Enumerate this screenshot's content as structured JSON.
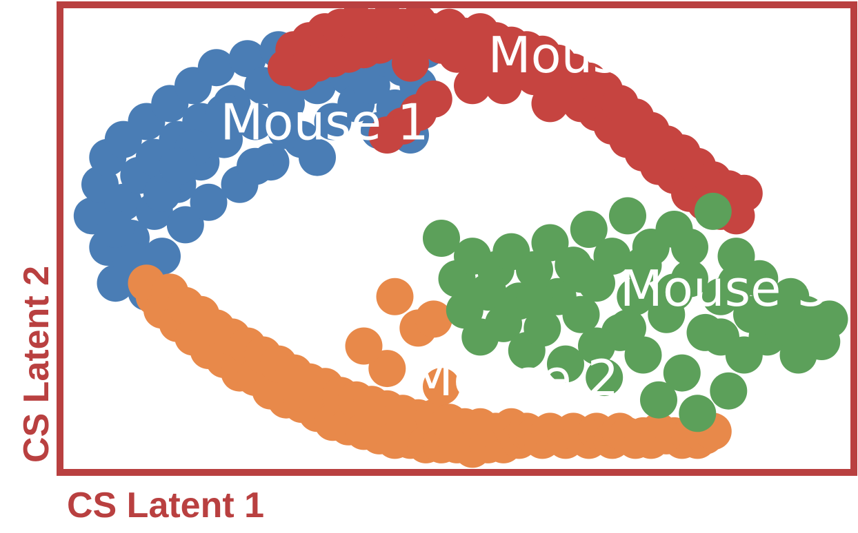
{
  "chart_data": {
    "type": "scatter",
    "title": "",
    "xlabel": "CS Latent 1",
    "ylabel": "CS Latent 2",
    "xlim": [
      0,
      100
    ],
    "ylim": [
      0,
      100
    ],
    "grid": false,
    "frame_color": "#b94040",
    "axis_label_color": "#b94040",
    "series": [
      {
        "name": "Mouse 1",
        "color": "#4a7db5",
        "label_at": [
          19.5,
          72
        ],
        "points": [
          [
            3,
            55
          ],
          [
            4,
            62
          ],
          [
            5,
            48
          ],
          [
            5,
            68
          ],
          [
            6,
            40
          ],
          [
            7,
            58
          ],
          [
            7,
            72
          ],
          [
            8,
            50
          ],
          [
            9,
            64
          ],
          [
            9,
            43
          ],
          [
            10,
            76
          ],
          [
            11,
            56
          ],
          [
            11,
            68
          ],
          [
            12,
            46
          ],
          [
            13,
            80
          ],
          [
            14,
            62
          ],
          [
            14,
            72
          ],
          [
            15,
            53
          ],
          [
            16,
            84
          ],
          [
            17,
            67
          ],
          [
            17,
            76
          ],
          [
            18,
            58
          ],
          [
            19,
            88
          ],
          [
            20,
            72
          ],
          [
            21,
            80
          ],
          [
            22,
            62
          ],
          [
            23,
            90
          ],
          [
            24,
            76
          ],
          [
            25,
            84
          ],
          [
            26,
            67
          ],
          [
            27,
            92
          ],
          [
            28,
            80
          ],
          [
            29,
            87
          ],
          [
            30,
            72
          ],
          [
            31,
            93
          ],
          [
            32,
            84
          ],
          [
            33,
            89
          ],
          [
            34,
            76
          ],
          [
            35,
            94
          ],
          [
            36,
            86
          ],
          [
            37,
            80
          ],
          [
            38,
            92
          ],
          [
            39,
            84
          ],
          [
            40,
            74
          ],
          [
            41,
            90
          ],
          [
            42,
            79
          ],
          [
            43,
            88
          ],
          [
            44,
            73
          ],
          [
            45,
            84
          ],
          [
            46,
            92
          ],
          [
            8,
            45
          ],
          [
            12,
            60
          ],
          [
            16,
            70
          ],
          [
            20,
            78
          ],
          [
            24,
            66
          ],
          [
            28,
            74
          ],
          [
            32,
            68
          ],
          [
            6,
            52
          ],
          [
            10,
            38
          ],
          [
            14,
            66
          ]
        ]
      },
      {
        "name": "Mouse 2",
        "color": "#e8894a",
        "label_at": [
          44,
          15
        ],
        "points": [
          [
            10,
            40
          ],
          [
            11,
            37
          ],
          [
            12,
            34
          ],
          [
            13,
            38
          ],
          [
            14,
            31
          ],
          [
            15,
            35
          ],
          [
            16,
            28
          ],
          [
            17,
            33
          ],
          [
            18,
            25
          ],
          [
            19,
            30
          ],
          [
            20,
            23
          ],
          [
            21,
            28
          ],
          [
            22,
            20
          ],
          [
            23,
            26
          ],
          [
            24,
            19
          ],
          [
            25,
            24
          ],
          [
            26,
            16
          ],
          [
            27,
            22
          ],
          [
            28,
            14
          ],
          [
            29,
            20
          ],
          [
            30,
            13
          ],
          [
            31,
            18
          ],
          [
            32,
            11
          ],
          [
            33,
            17
          ],
          [
            34,
            9
          ],
          [
            35,
            15
          ],
          [
            36,
            8
          ],
          [
            37,
            14
          ],
          [
            38,
            7
          ],
          [
            39,
            13
          ],
          [
            40,
            6
          ],
          [
            41,
            12
          ],
          [
            42,
            5
          ],
          [
            43,
            11
          ],
          [
            44,
            5
          ],
          [
            45,
            10
          ],
          [
            46,
            4
          ],
          [
            47,
            10
          ],
          [
            48,
            4
          ],
          [
            49,
            9
          ],
          [
            50,
            4
          ],
          [
            51,
            8
          ],
          [
            52,
            3
          ],
          [
            53,
            8
          ],
          [
            54,
            4
          ],
          [
            55,
            7
          ],
          [
            56,
            4
          ],
          [
            57,
            8
          ],
          [
            58,
            5
          ],
          [
            59,
            7
          ],
          [
            60,
            6
          ],
          [
            61,
            5
          ],
          [
            62,
            7
          ],
          [
            63,
            6
          ],
          [
            64,
            5
          ],
          [
            65,
            7
          ],
          [
            66,
            6
          ],
          [
            67,
            5
          ],
          [
            68,
            7
          ],
          [
            69,
            6
          ],
          [
            70,
            5
          ],
          [
            71,
            7
          ],
          [
            72,
            6
          ],
          [
            73,
            5
          ],
          [
            74,
            6
          ],
          [
            75,
            5
          ],
          [
            76,
            7
          ],
          [
            77,
            6
          ],
          [
            78,
            6
          ],
          [
            79,
            5
          ],
          [
            80,
            6
          ],
          [
            81,
            5
          ],
          [
            82,
            6
          ],
          [
            83,
            7
          ],
          [
            41,
            21
          ],
          [
            38,
            26
          ],
          [
            42,
            37
          ],
          [
            45,
            30
          ],
          [
            47,
            32
          ],
          [
            48,
            17
          ]
        ]
      },
      {
        "name": "Mouse 3",
        "color": "#5ca05a",
        "label_at": [
          71,
          35
        ],
        "points": [
          [
            48,
            50
          ],
          [
            50,
            41
          ],
          [
            51,
            34
          ],
          [
            52,
            46
          ],
          [
            53,
            28
          ],
          [
            54,
            38
          ],
          [
            55,
            43
          ],
          [
            56,
            31
          ],
          [
            57,
            47
          ],
          [
            58,
            36
          ],
          [
            59,
            25
          ],
          [
            60,
            43
          ],
          [
            61,
            30
          ],
          [
            62,
            49
          ],
          [
            63,
            37
          ],
          [
            64,
            22
          ],
          [
            65,
            44
          ],
          [
            66,
            33
          ],
          [
            67,
            52
          ],
          [
            68,
            40
          ],
          [
            69,
            19
          ],
          [
            70,
            46
          ],
          [
            71,
            29
          ],
          [
            72,
            55
          ],
          [
            73,
            37
          ],
          [
            74,
            24
          ],
          [
            75,
            48
          ],
          [
            76,
            14
          ],
          [
            77,
            33
          ],
          [
            78,
            52
          ],
          [
            79,
            20
          ],
          [
            80,
            41
          ],
          [
            81,
            11
          ],
          [
            82,
            29
          ],
          [
            83,
            56
          ],
          [
            84,
            37
          ],
          [
            85,
            16
          ],
          [
            86,
            46
          ],
          [
            87,
            24
          ],
          [
            88,
            33
          ],
          [
            89,
            41
          ],
          [
            90,
            28
          ],
          [
            91,
            35
          ],
          [
            92,
            30
          ],
          [
            93,
            37
          ],
          [
            94,
            24
          ],
          [
            95,
            33
          ],
          [
            96,
            30
          ],
          [
            97,
            27
          ],
          [
            98,
            32
          ],
          [
            60,
            36
          ],
          [
            66,
            42
          ],
          [
            72,
            30
          ],
          [
            78,
            38
          ],
          [
            84,
            28
          ],
          [
            74,
            44
          ],
          [
            68,
            26
          ],
          [
            80,
            48
          ],
          [
            86,
            40
          ],
          [
            92,
            34
          ]
        ]
      },
      {
        "name": "Mouse 4",
        "color": "#c64440",
        "label_at": [
          54,
          87
        ],
        "points": [
          [
            28,
            88
          ],
          [
            29,
            92
          ],
          [
            30,
            87
          ],
          [
            31,
            94
          ],
          [
            32,
            89
          ],
          [
            33,
            96
          ],
          [
            34,
            90
          ],
          [
            35,
            97
          ],
          [
            36,
            91
          ],
          [
            37,
            98
          ],
          [
            38,
            92
          ],
          [
            39,
            97
          ],
          [
            40,
            93
          ],
          [
            41,
            98
          ],
          [
            42,
            94
          ],
          [
            43,
            97
          ],
          [
            44,
            93
          ],
          [
            45,
            98
          ],
          [
            46,
            94
          ],
          [
            47,
            96
          ],
          [
            48,
            93
          ],
          [
            49,
            97
          ],
          [
            50,
            91
          ],
          [
            51,
            95
          ],
          [
            52,
            92
          ],
          [
            53,
            96
          ],
          [
            54,
            90
          ],
          [
            55,
            94
          ],
          [
            56,
            89
          ],
          [
            57,
            93
          ],
          [
            58,
            88
          ],
          [
            59,
            92
          ],
          [
            60,
            86
          ],
          [
            61,
            91
          ],
          [
            62,
            84
          ],
          [
            63,
            89
          ],
          [
            64,
            82
          ],
          [
            65,
            87
          ],
          [
            66,
            80
          ],
          [
            67,
            85
          ],
          [
            68,
            78
          ],
          [
            69,
            83
          ],
          [
            70,
            75
          ],
          [
            71,
            80
          ],
          [
            72,
            72
          ],
          [
            73,
            77
          ],
          [
            74,
            69
          ],
          [
            75,
            74
          ],
          [
            76,
            66
          ],
          [
            77,
            71
          ],
          [
            78,
            64
          ],
          [
            79,
            69
          ],
          [
            80,
            60
          ],
          [
            81,
            66
          ],
          [
            82,
            58
          ],
          [
            83,
            63
          ],
          [
            84,
            56
          ],
          [
            85,
            61
          ],
          [
            86,
            55
          ],
          [
            87,
            60
          ],
          [
            45,
            78
          ],
          [
            47,
            81
          ],
          [
            43,
            75
          ],
          [
            52,
            84
          ],
          [
            41,
            73
          ],
          [
            44,
            89
          ],
          [
            56,
            84
          ],
          [
            62,
            80
          ]
        ]
      }
    ]
  }
}
